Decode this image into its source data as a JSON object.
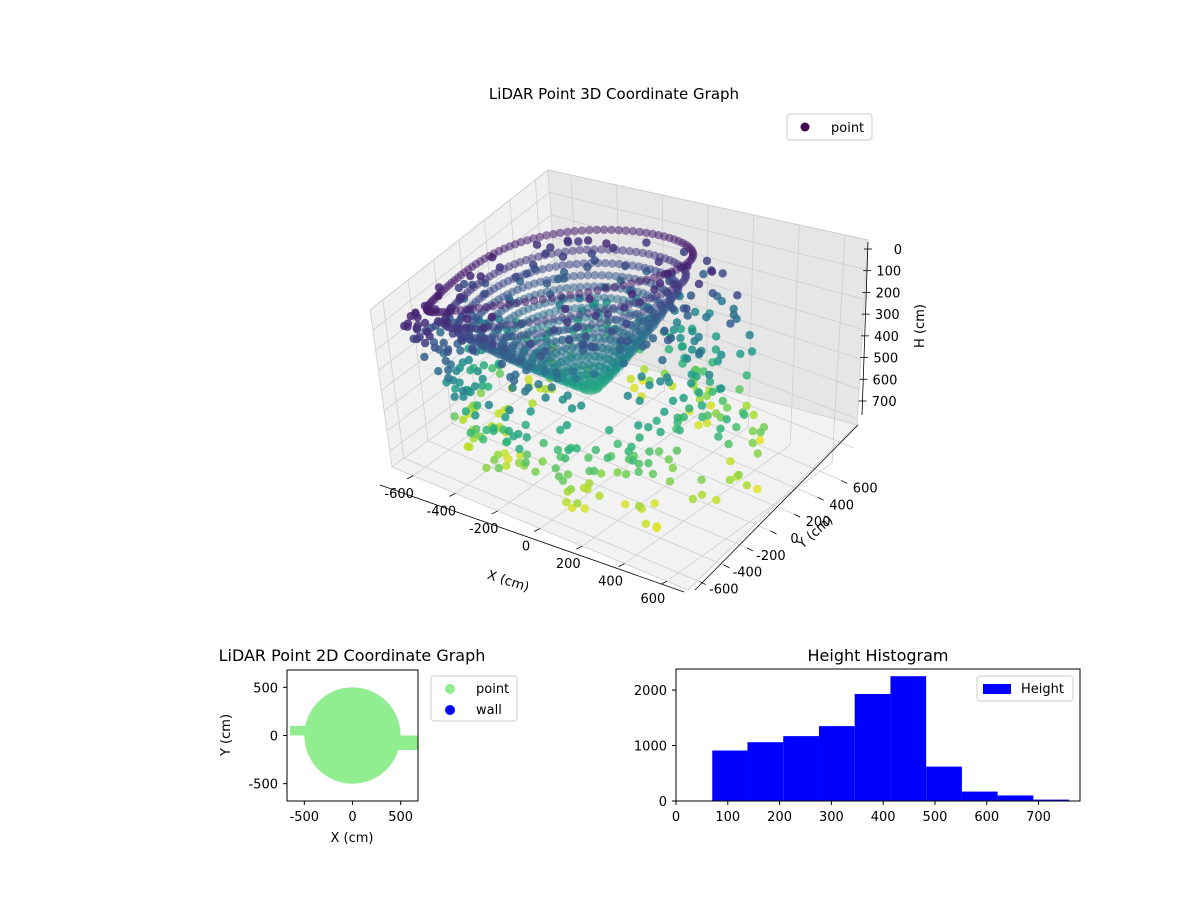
{
  "chart_data": [
    {
      "type": "scatter3d",
      "title": "LiDAR Point 3D Coordinate Graph",
      "xlabel": "X (cm)",
      "ylabel": "Y (cm)",
      "zlabel": "H (cm)",
      "xlim": [
        -700,
        700
      ],
      "ylim": [
        -700,
        700
      ],
      "zlim": [
        0,
        780
      ],
      "z_inverted": true,
      "x_ticks": [
        -600,
        -400,
        -200,
        0,
        200,
        400,
        600
      ],
      "y_ticks": [
        -600,
        -400,
        -200,
        0,
        200,
        400,
        600
      ],
      "z_ticks": [
        0,
        100,
        200,
        300,
        400,
        500,
        600,
        700
      ],
      "colormap": "viridis",
      "legend": [
        {
          "label": "point",
          "color": "#440154"
        }
      ],
      "legend_placement": "upper-right",
      "grid": true
    },
    {
      "type": "scatter",
      "title": "LiDAR Point 2D Coordinate Graph",
      "xlabel": "X (cm)",
      "ylabel": "Y (cm)",
      "xlim": [
        -680,
        680
      ],
      "ylim": [
        -680,
        680
      ],
      "x_ticks": [
        -500,
        0,
        500
      ],
      "y_ticks": [
        -500,
        0,
        500
      ],
      "series": [
        {
          "name": "point",
          "color": "#90ee90",
          "circle_radius": 500,
          "notch_left": [
            -650,
            -600
          ],
          "notch_right": [
            620,
            680
          ]
        },
        {
          "name": "wall",
          "color": "#0000ff",
          "values": []
        }
      ],
      "legend_placement": "outside-right",
      "grid": false
    },
    {
      "type": "bar",
      "title": "Height Histogram",
      "xlabel": "",
      "ylabel": "",
      "xlim": [
        0,
        780
      ],
      "ylim": [
        0,
        2380
      ],
      "x_ticks": [
        0,
        100,
        200,
        300,
        400,
        500,
        600,
        700
      ],
      "y_ticks": [
        0,
        1000,
        2000
      ],
      "bin_edges": [
        70,
        138,
        207,
        276,
        345,
        414,
        483,
        552,
        621,
        690,
        759
      ],
      "values": [
        910,
        1060,
        1170,
        1350,
        1930,
        2250,
        620,
        170,
        100,
        25
      ],
      "color": "#0000ff",
      "legend": [
        {
          "label": "Height",
          "color": "#0000ff"
        }
      ],
      "legend_placement": "upper-right",
      "grid": false
    }
  ]
}
